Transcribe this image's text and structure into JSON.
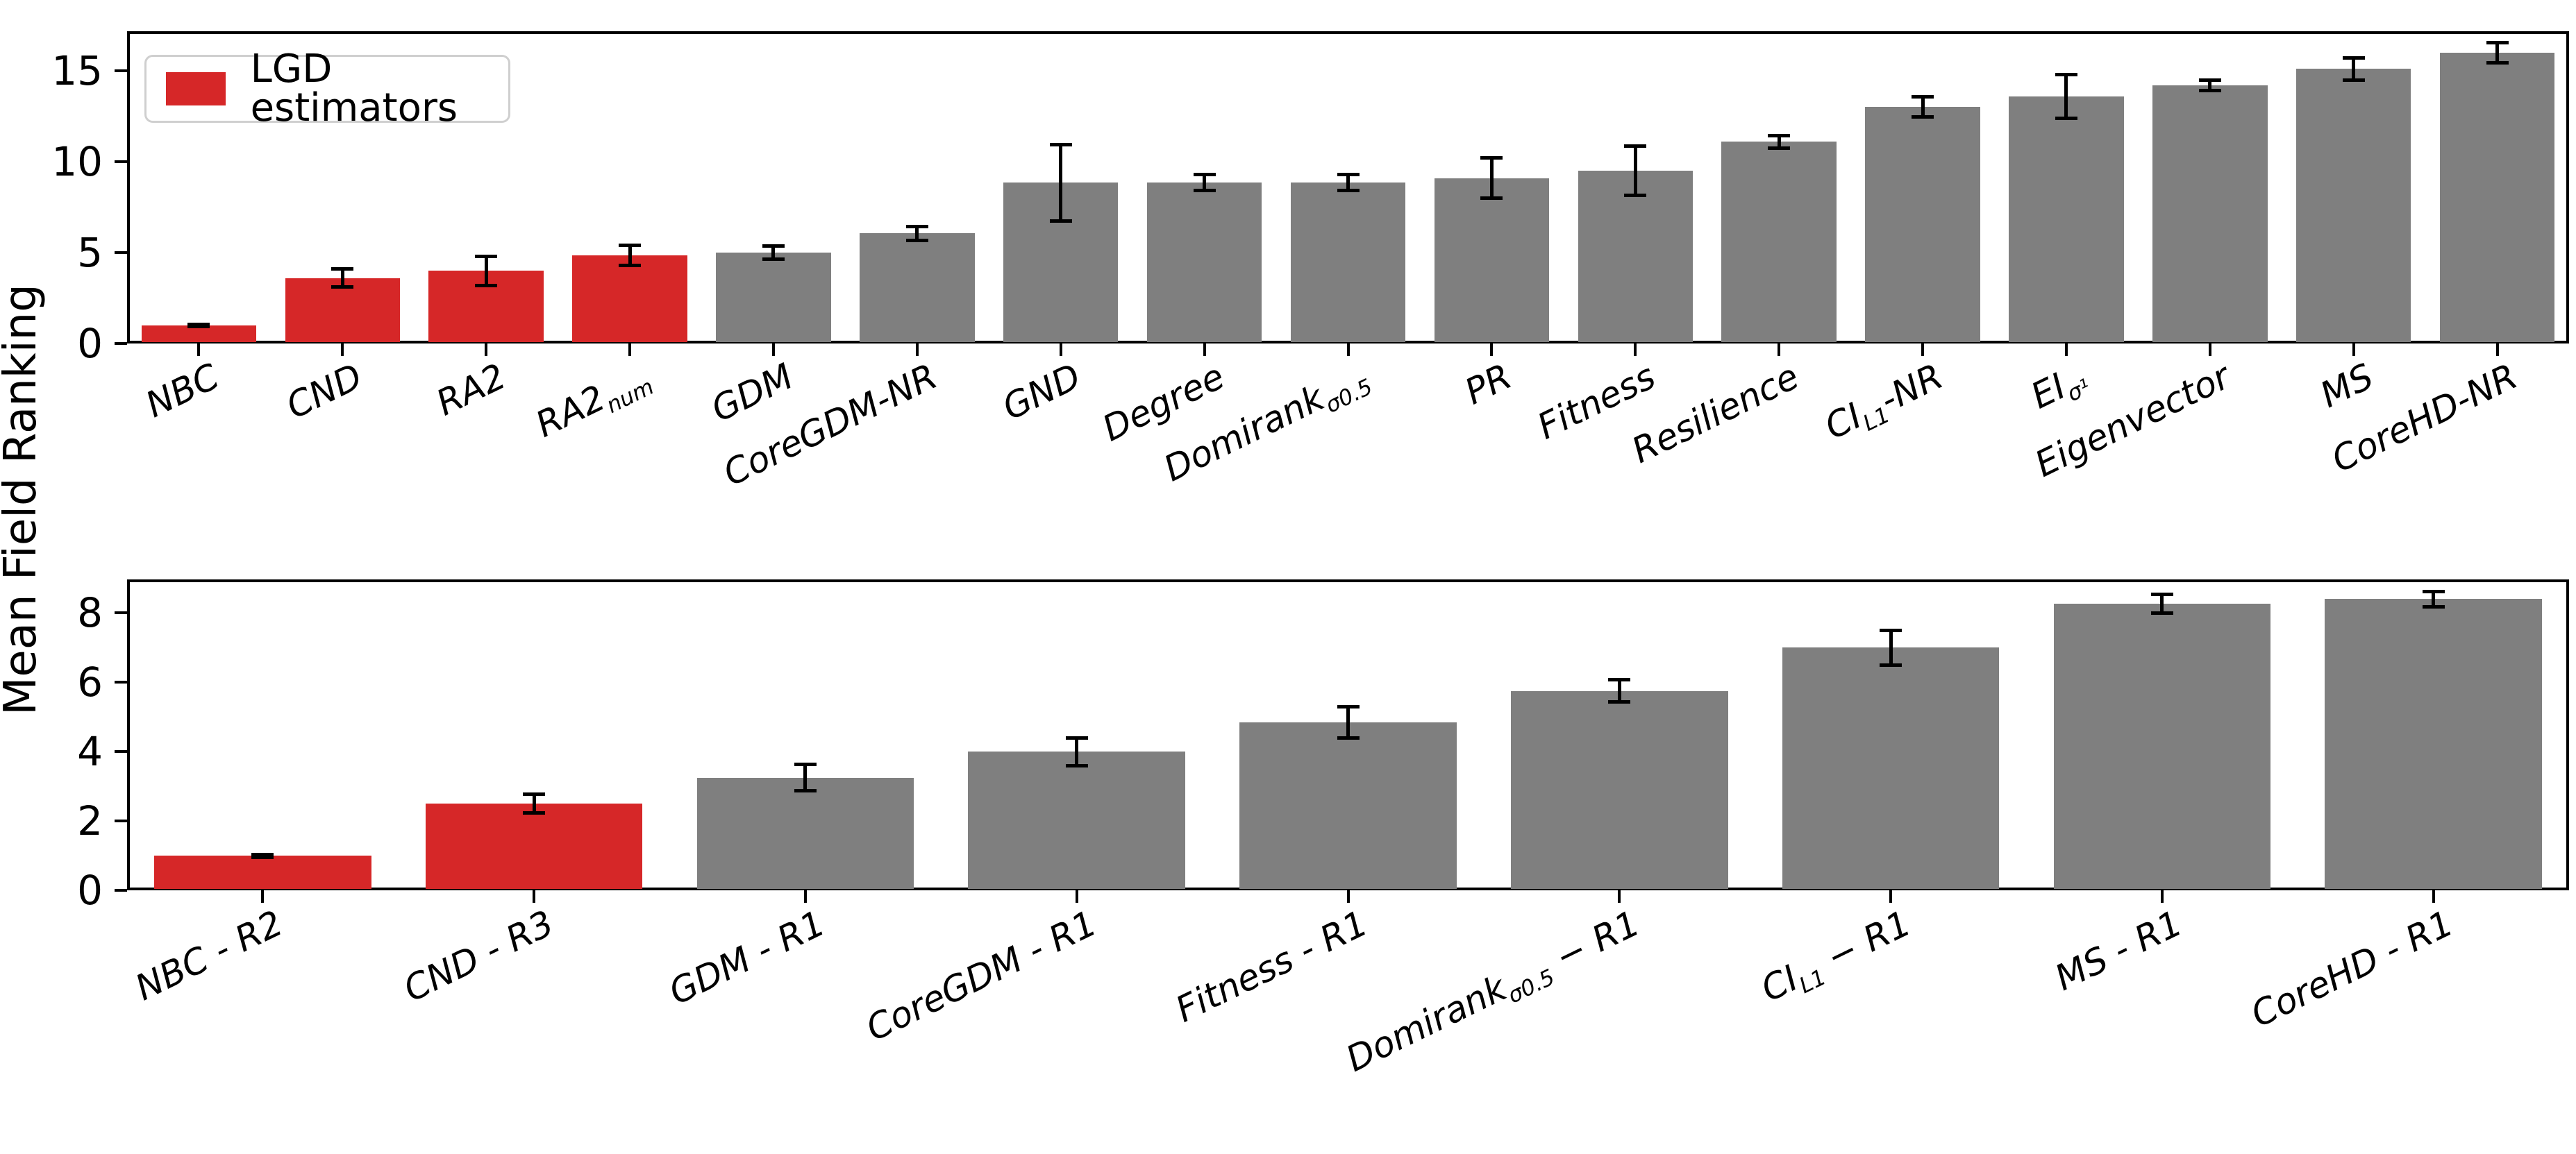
{
  "figure": {
    "ylabel": "Mean Field Ranking",
    "background_color": "#ffffff",
    "axis_color": "#000000",
    "legend": {
      "label": "LGD estimators",
      "swatch_color": "#d62728"
    },
    "bar_palette": {
      "lgd": "#d62728",
      "other": "#7f7f7f"
    }
  },
  "chart_data": [
    {
      "type": "bar",
      "title": "",
      "xlabel": "",
      "ylabel": "Mean Field Ranking",
      "ylim": [
        0,
        17.2
      ],
      "yticks": [
        0,
        5,
        10,
        15
      ],
      "grid": false,
      "legend_entries": [
        "LGD estimators"
      ],
      "legend_position": "upper left",
      "error_bars": true,
      "categories": [
        "NBC",
        "CND",
        "RA2",
        "RA2_{num}",
        "GDM",
        "CoreGDM-NR",
        "GND",
        "Degree",
        "Domirank_{σ0.5}",
        "PR",
        "Fitness",
        "Resilience",
        "CI_{L1}-NR",
        "EI_{σ¹}",
        "Eigenvector",
        "MS",
        "CoreHD-NR"
      ],
      "values": [
        1.0,
        3.6,
        4.0,
        4.85,
        5.0,
        6.05,
        8.85,
        8.85,
        8.85,
        9.1,
        9.5,
        11.1,
        13.0,
        13.6,
        14.2,
        15.1,
        16.0
      ],
      "errors": [
        0.05,
        0.5,
        0.8,
        0.55,
        0.35,
        0.4,
        2.1,
        0.45,
        0.45,
        1.1,
        1.35,
        0.35,
        0.55,
        1.2,
        0.3,
        0.6,
        0.55
      ],
      "bar_color_keys": [
        "lgd",
        "lgd",
        "lgd",
        "lgd",
        "other",
        "other",
        "other",
        "other",
        "other",
        "other",
        "other",
        "other",
        "other",
        "other",
        "other",
        "other",
        "other"
      ]
    },
    {
      "type": "bar",
      "title": "",
      "xlabel": "",
      "ylabel": "Mean Field Ranking",
      "ylim": [
        0,
        9.0
      ],
      "yticks": [
        0,
        2,
        4,
        6,
        8
      ],
      "grid": false,
      "legend_entries": [],
      "error_bars": true,
      "categories": [
        "NBC - R2",
        "CND - R3",
        "GDM - R1",
        "CoreGDM - R1",
        "Fitness - R1",
        "Domirank_{σ0.5} − R1",
        "CI_{L1} − R1",
        "MS - R1",
        "CoreHD - R1"
      ],
      "values": [
        1.0,
        2.5,
        3.25,
        4.0,
        4.85,
        5.75,
        7.0,
        8.27,
        8.4
      ],
      "errors": [
        0.04,
        0.27,
        0.38,
        0.4,
        0.45,
        0.32,
        0.5,
        0.27,
        0.22
      ],
      "bar_color_keys": [
        "lgd",
        "lgd",
        "other",
        "other",
        "other",
        "other",
        "other",
        "other",
        "other"
      ]
    }
  ]
}
